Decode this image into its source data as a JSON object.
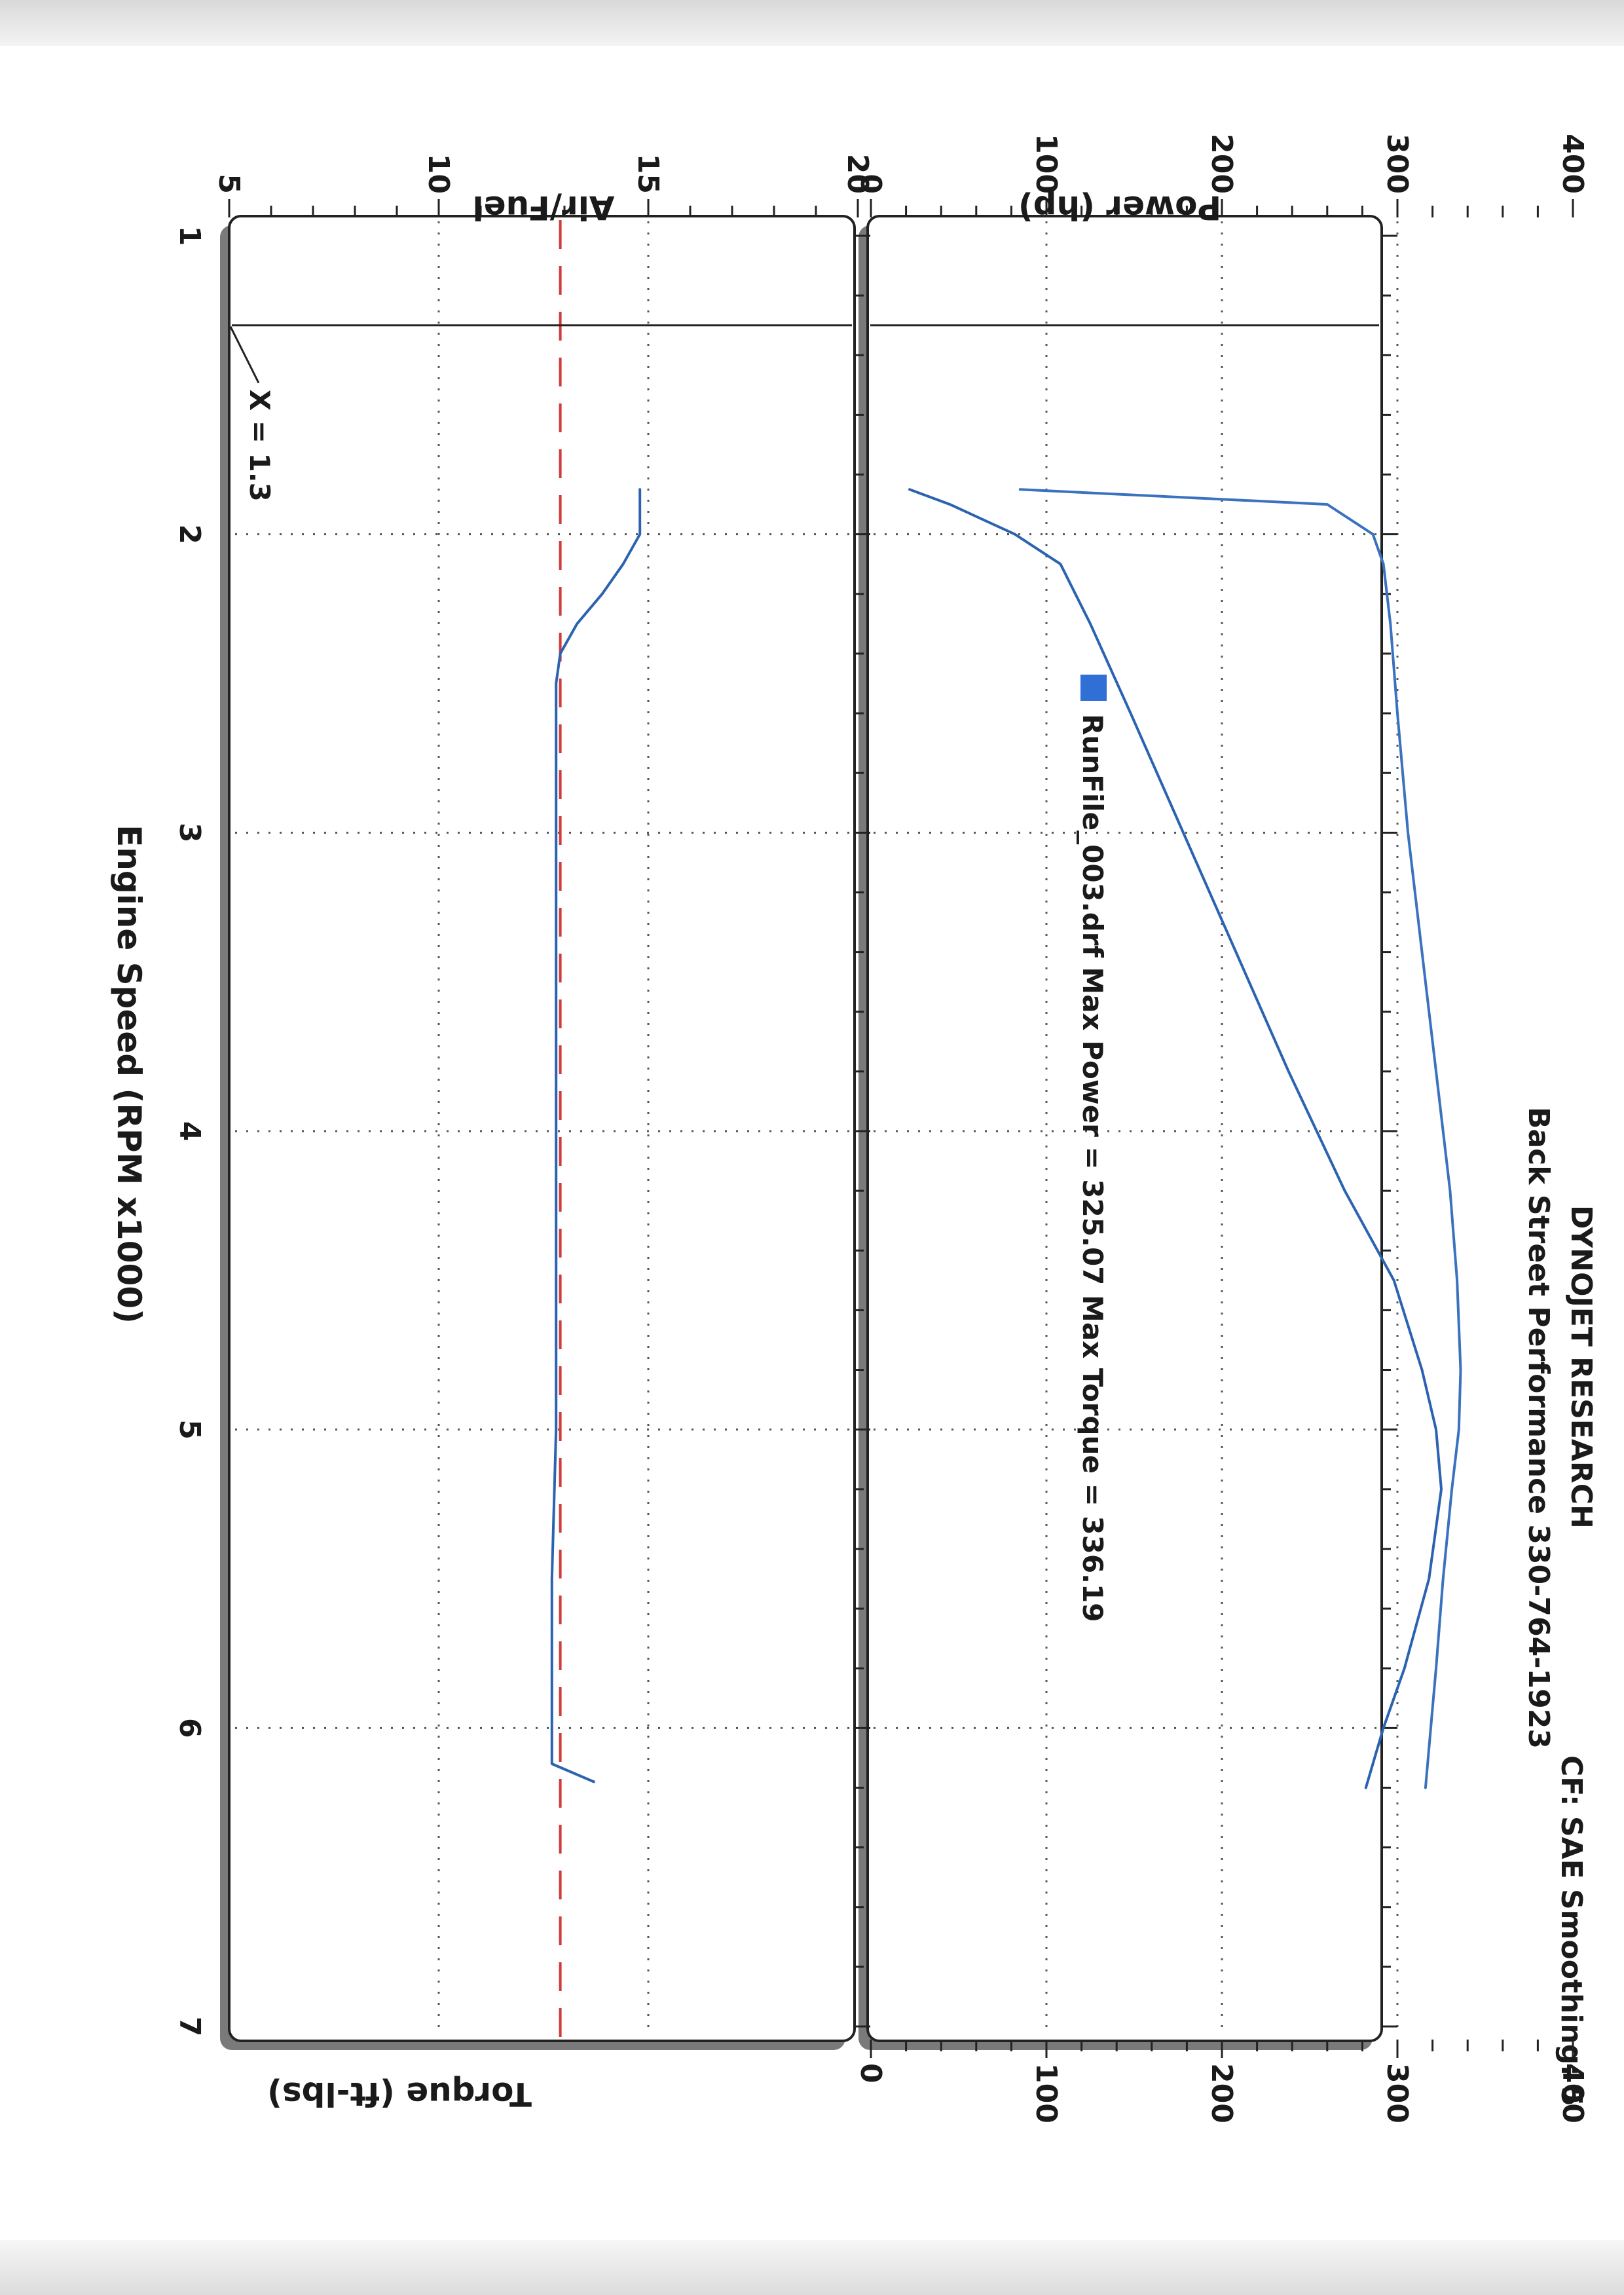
{
  "header": {
    "company": "DYNOJET RESEARCH",
    "shop": "Back Street Performance 330-764-1923",
    "settings": "CF: SAE  Smoothing: 5"
  },
  "legend": {
    "label": "RunFile_003.drf Max Power = 325.07    Max Torque = 336.19",
    "color": "#2f6fd6"
  },
  "cursor_label": "X = 1.3",
  "chart_data": [
    {
      "type": "line",
      "title": "",
      "xlabel": "Engine Speed (RPM x1000)",
      "ylabel": "Power (hp)",
      "y2label": "Torque (ft-lbs)",
      "xlim": [
        1,
        7
      ],
      "ylim": [
        0,
        400
      ],
      "y2lim": [
        0,
        400
      ],
      "xticks": [
        "1",
        "2",
        "3",
        "4",
        "5",
        "6",
        "7"
      ],
      "yticks": [
        "0",
        "100",
        "200",
        "300",
        "400"
      ],
      "y2ticks": [
        "0",
        "100",
        "200",
        "300",
        "400"
      ],
      "grid": true,
      "cursor_x": 1.3,
      "series": [
        {
          "axis": "left",
          "color": "#2b63b0",
          "x": [
            1.85,
            1.9,
            2.0,
            2.1,
            2.3,
            2.6,
            3.0,
            3.4,
            3.8,
            4.2,
            4.5,
            4.8,
            5.0,
            5.2,
            5.5,
            5.8,
            6.0,
            6.2
          ],
          "y": [
            22,
            45,
            82,
            108,
            125,
            148,
            178,
            208,
            238,
            270,
            298,
            314,
            322,
            325,
            318,
            304,
            292,
            282
          ]
        },
        {
          "axis": "right",
          "color": "#3a72c0",
          "x": [
            1.85,
            1.9,
            2.0,
            2.1,
            2.3,
            2.6,
            3.0,
            3.4,
            3.8,
            4.2,
            4.5,
            4.8,
            5.0,
            5.2,
            5.5,
            5.8,
            6.0,
            6.2
          ],
          "y": [
            85,
            260,
            286,
            292,
            296,
            300,
            306,
            314,
            322,
            330,
            334,
            336,
            335,
            331,
            326,
            322,
            319,
            316
          ]
        }
      ]
    },
    {
      "type": "line",
      "title": "",
      "xlabel": "Engine Speed (RPM x1000)",
      "ylabel": "Air/Fuel",
      "xlim": [
        1,
        7
      ],
      "ylim": [
        5,
        20
      ],
      "xticks": [
        "1",
        "2",
        "3",
        "4",
        "5",
        "6",
        "7"
      ],
      "yticks": [
        "5",
        "10",
        "15",
        "20"
      ],
      "grid": true,
      "reference_line": {
        "y": 12.9,
        "color": "#d23a3a",
        "style": "dashed"
      },
      "series": [
        {
          "color": "#2b63b0",
          "x": [
            1.85,
            2.0,
            2.1,
            2.2,
            2.3,
            2.4,
            2.5,
            3.0,
            3.5,
            4.0,
            4.5,
            5.0,
            5.5,
            6.0,
            6.12,
            6.18
          ],
          "y": [
            14.8,
            14.8,
            14.4,
            13.9,
            13.3,
            12.9,
            12.8,
            12.8,
            12.8,
            12.8,
            12.8,
            12.8,
            12.7,
            12.7,
            12.7,
            13.7
          ]
        }
      ]
    }
  ]
}
